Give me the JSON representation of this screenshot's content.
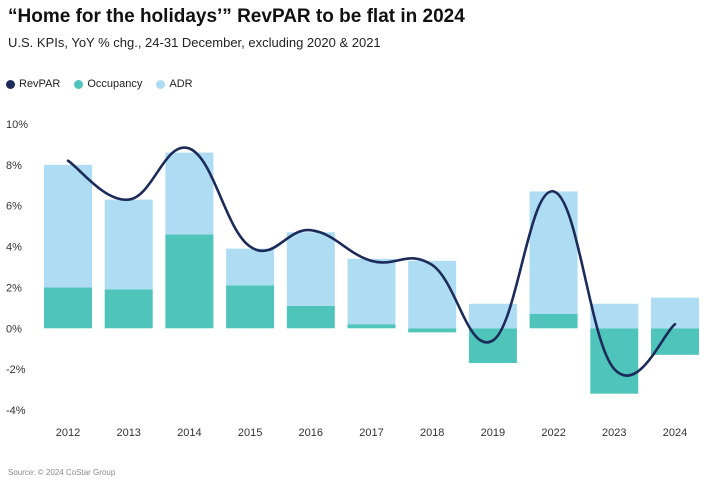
{
  "title": "“Home for the holidays’” RevPAR to be flat in 2024",
  "subtitle": "U.S. KPIs, YoY % chg., 24-31 December, excluding 2020 & 2021",
  "source": "Source: © 2024 CoStar Group",
  "legend": [
    {
      "label": "RevPAR",
      "color": "#1c2b59"
    },
    {
      "label": "Occupancy",
      "color": "#4fc4bb"
    },
    {
      "label": "ADR",
      "color": "#aedcf3"
    }
  ],
  "chart_data": {
    "type": "bar",
    "stacked": true,
    "categories": [
      "2012",
      "2013",
      "2014",
      "2015",
      "2016",
      "2017",
      "2018",
      "2019",
      "2022",
      "2023",
      "2024"
    ],
    "series": [
      {
        "name": "Occupancy",
        "type": "bar",
        "color": "#4fc4bb",
        "values": [
          2.0,
          1.9,
          4.6,
          2.1,
          1.1,
          0.2,
          -0.2,
          -1.7,
          0.7,
          -3.2,
          -1.3
        ]
      },
      {
        "name": "ADR",
        "type": "bar",
        "color": "#aedcf3",
        "values": [
          6.0,
          4.4,
          4.0,
          1.8,
          3.6,
          3.2,
          3.3,
          1.2,
          6.0,
          1.2,
          1.5
        ]
      },
      {
        "name": "RevPAR",
        "type": "line",
        "color": "#1c2b59",
        "values": [
          8.2,
          6.3,
          8.8,
          4.0,
          4.8,
          3.3,
          3.1,
          -0.6,
          6.7,
          -2.0,
          0.2
        ]
      }
    ],
    "yticks": [
      10,
      8,
      6,
      4,
      2,
      0,
      -2,
      -4
    ],
    "ytick_labels": [
      "10%",
      "8%",
      "6%",
      "4%",
      "2%",
      "0%",
      "-2%",
      "-4%"
    ],
    "ylim": [
      -4,
      10
    ],
    "xlabel": "",
    "ylabel": ""
  }
}
